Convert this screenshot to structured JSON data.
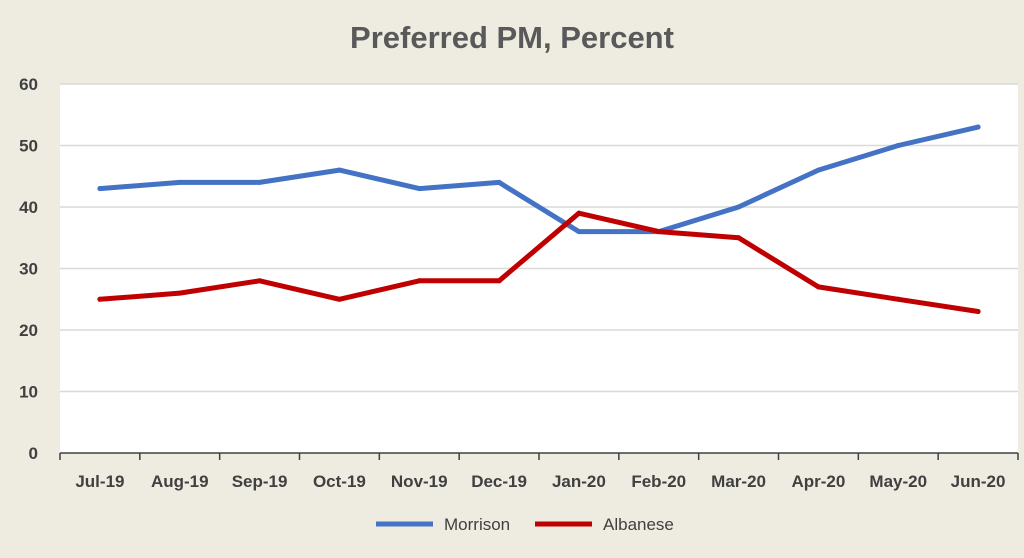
{
  "chart_data": {
    "type": "line",
    "title": "Preferred PM, Percent",
    "xlabel": "",
    "ylabel": "",
    "categories": [
      "Jul-19",
      "Aug-19",
      "Sep-19",
      "Oct-19",
      "Nov-19",
      "Dec-19",
      "Jan-20",
      "Feb-20",
      "Mar-20",
      "Apr-20",
      "May-20",
      "Jun-20"
    ],
    "ylim": [
      0,
      60
    ],
    "yticks": [
      0,
      10,
      20,
      30,
      40,
      50,
      60
    ],
    "grid": true,
    "legend": "bottom",
    "series": [
      {
        "name": "Morrison",
        "color": "#4472c4",
        "values": [
          43,
          44,
          44,
          46,
          43,
          44,
          36,
          36,
          40,
          46,
          50,
          53
        ]
      },
      {
        "name": "Albanese",
        "color": "#c00000",
        "values": [
          25,
          26,
          28,
          25,
          28,
          28,
          39,
          36,
          35,
          27,
          25,
          23
        ]
      }
    ]
  },
  "colors": {
    "background": "#eeebe1",
    "plot_background": "#ffffff",
    "gridline": "#d9d9d9",
    "axis": "#404040"
  }
}
